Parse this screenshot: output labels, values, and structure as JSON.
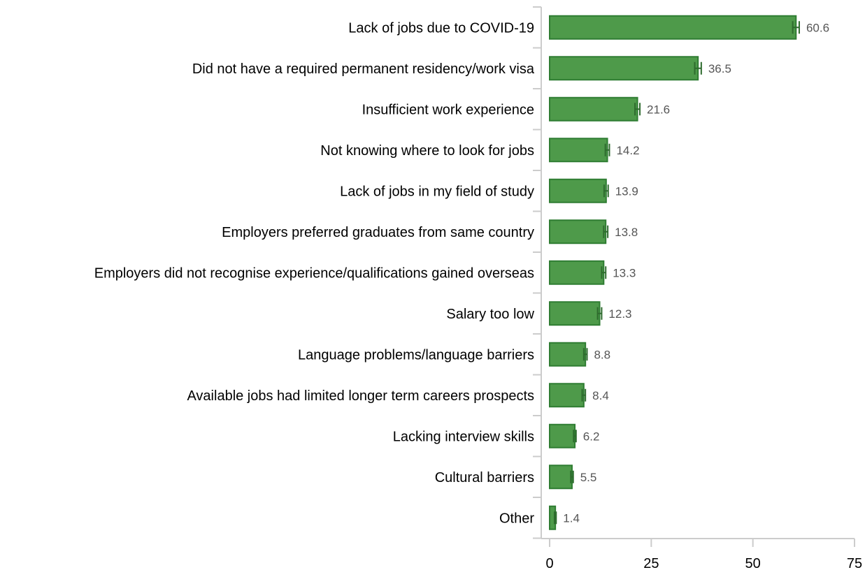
{
  "chart_data": {
    "type": "bar",
    "orientation": "horizontal",
    "title": "",
    "xlabel": "",
    "ylabel": "",
    "categories": [
      "Lack of jobs due to COVID-19",
      "Did not have a required permanent residency/work visa",
      "Insufficient work experience",
      "Not knowing where to look for jobs",
      "Lack of jobs in my field of study",
      "Employers preferred graduates from same country",
      "Employers did not recognise experience/qualifications gained overseas",
      "Salary too low",
      "Language problems/language barriers",
      "Available jobs had limited longer term careers prospects",
      "Lacking interview skills",
      "Cultural barriers",
      "Other"
    ],
    "values": [
      60.6,
      36.5,
      21.6,
      14.2,
      13.9,
      13.8,
      13.3,
      12.3,
      8.8,
      8.4,
      6.2,
      5.5,
      1.4
    ],
    "value_labels": [
      "60.6",
      "36.5",
      "21.6",
      "14.2",
      "13.9",
      "13.8",
      "13.3",
      "12.3",
      "8.8",
      "8.4",
      "6.2",
      "5.5",
      "1.4"
    ],
    "error_bars": [
      [
        59.8,
        61.4
      ],
      [
        35.7,
        37.3
      ],
      [
        21.0,
        22.2
      ],
      [
        13.7,
        14.7
      ],
      [
        13.4,
        14.4
      ],
      [
        13.3,
        14.3
      ],
      [
        12.8,
        13.8
      ],
      [
        11.8,
        12.8
      ],
      [
        8.4,
        9.2
      ],
      [
        8.0,
        8.8
      ],
      [
        5.9,
        6.5
      ],
      [
        5.2,
        5.8
      ],
      [
        1.2,
        1.6
      ]
    ],
    "xlim": [
      0,
      75
    ],
    "xticks": [
      0,
      25,
      50,
      75
    ],
    "xtick_labels": [
      "0",
      "25",
      "50",
      "75"
    ],
    "grid": false,
    "legend": "none",
    "colors": {
      "bar_fill": "#4e9a4a",
      "bar_stroke": "#2f7d32",
      "error_bar": "#2e6b2e",
      "axis": "#cccccc",
      "value_text": "#555555"
    }
  }
}
